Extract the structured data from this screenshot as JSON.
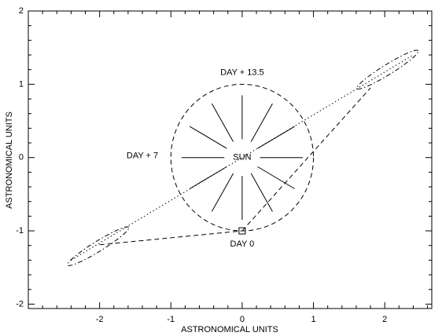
{
  "chart_data": {
    "type": "line",
    "xlabel": "ASTRONOMICAL UNITS",
    "ylabel": "ASTRONOMICAL UNITS",
    "xlim": [
      -3,
      2.66
    ],
    "ylim": [
      -2.06,
      2
    ],
    "xticks": [
      -2,
      -1,
      0,
      1,
      2
    ],
    "yticks": [
      -2,
      -1,
      0,
      1,
      2
    ],
    "minor_per_major": 5,
    "color": "#000000",
    "circle": {
      "center": [
        0,
        0
      ],
      "radius": 1,
      "dash": "dashed"
    },
    "rays": {
      "angles": [
        0,
        30,
        60,
        90,
        120,
        150,
        180,
        210,
        240,
        270,
        300,
        330
      ],
      "r_inner": 0.25,
      "r_outer": 0.85
    },
    "lines": [
      {
        "x": [
          -2.4,
          2.4
        ],
        "y": [
          -1.4,
          1.4
        ],
        "dash": "dotted"
      },
      {
        "x": [
          -2.0,
          0
        ],
        "y": [
          -1.19,
          -1
        ],
        "dash": "dashed"
      },
      {
        "x": [
          0,
          1.8
        ],
        "y": [
          -1,
          0.95
        ],
        "dash": "dashed"
      }
    ],
    "ellipses": [
      {
        "center": [
          -2.02,
          -1.21
        ],
        "semi_axes": [
          0.5,
          0.07
        ],
        "angle": 31,
        "dash": "dashdot"
      },
      {
        "center": [
          2.04,
          1.2
        ],
        "semi_axes": [
          0.5,
          0.07
        ],
        "angle": 31,
        "dash": "dashdot"
      }
    ],
    "marker": {
      "x": 0,
      "y": -1,
      "symbol": "square"
    },
    "annotations": [
      {
        "text": "SUN",
        "x": 0,
        "y": 0
      },
      {
        "text": "DAY + 13.5",
        "x": 0,
        "y": 1.16
      },
      {
        "text": "DAY + 7",
        "x": -1.4,
        "y": 0.02
      },
      {
        "text": "DAY 0",
        "x": 0,
        "y": -1.18
      }
    ]
  }
}
